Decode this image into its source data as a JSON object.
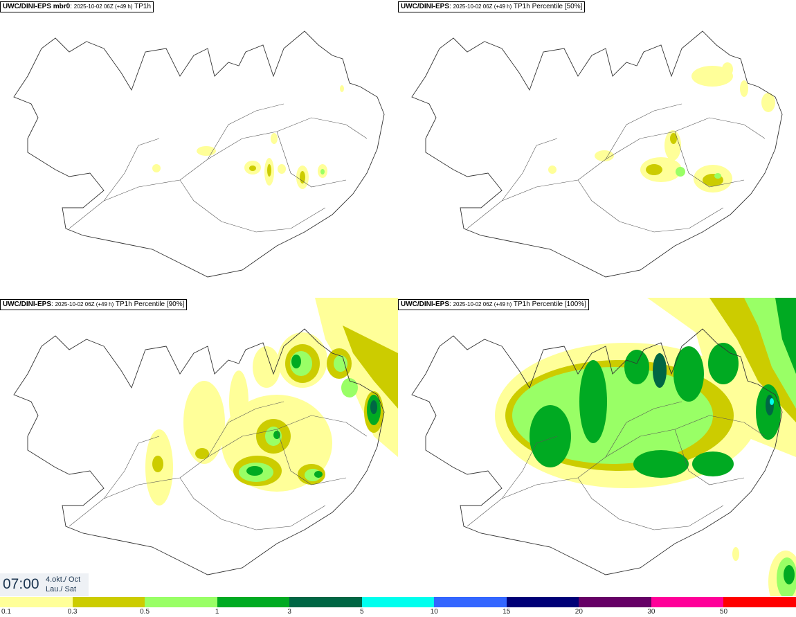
{
  "panels": [
    {
      "model": "UWC/DINI-EPS mbr0",
      "run": "2025-10-02 06Z (+49 h)",
      "field": "TP1h"
    },
    {
      "model": "UWC/DINI-EPS",
      "run": "2025-10-02 06Z (+49 h)",
      "field": "TP1h Percentile [50%]"
    },
    {
      "model": "UWC/DINI-EPS",
      "run": "2025-10-02 06Z (+49 h)",
      "field": "TP1h Percentile [90%]"
    },
    {
      "model": "UWC/DINI-EPS",
      "run": "2025-10-02 06Z (+49 h)",
      "field": "TP1h Percentile [100%]"
    }
  ],
  "valid_time": {
    "time": "07:00",
    "date_line1": "4.okt./ Oct",
    "date_line2": "Lau./ Sat"
  },
  "legend": {
    "labels": [
      "0.1",
      "0.3",
      "0.5",
      "1",
      "3",
      "5",
      "10",
      "15",
      "20",
      "30",
      "50"
    ],
    "colors": [
      "#ffff99",
      "#cccc00",
      "#99ff66",
      "#00aa22",
      "#006644",
      "#00ffee",
      "#3366ff",
      "#000077",
      "#660066",
      "#ff0099",
      "#ff0000"
    ]
  }
}
